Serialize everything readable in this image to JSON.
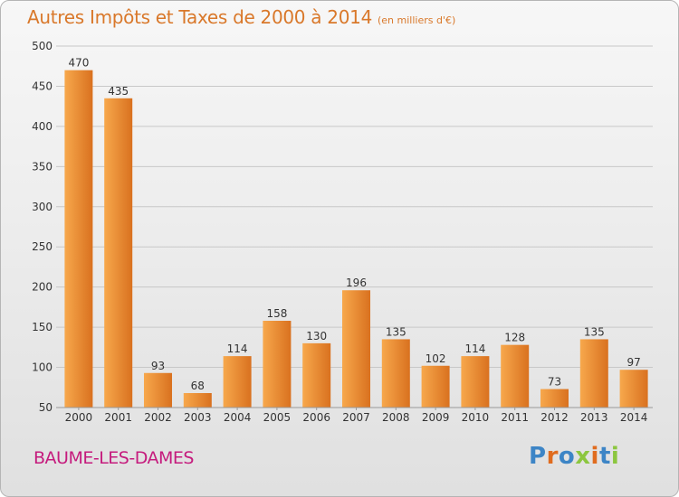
{
  "header": {
    "title": "Autres Impôts et Taxes de 2000 à 2014",
    "unit": "(en milliers d'€)"
  },
  "footer": {
    "city": "BAUME-LES-DAMES",
    "logo_text": "Proxiti"
  },
  "colors": {
    "title": "#d9782a",
    "city": "#c51b7d",
    "bar_light": "#f7a84c",
    "bar_dark": "#d9711f",
    "grid": "#c8c8c8",
    "logo": [
      "#3d85c6",
      "#e06c1f",
      "#3d85c6",
      "#8cc63f",
      "#e06c1f",
      "#3d85c6",
      "#8cc63f"
    ]
  },
  "chart_data": {
    "type": "bar",
    "title": "Autres Impôts et Taxes de 2000 à 2014",
    "subtitle": "(en milliers d'€)",
    "xlabel": "",
    "ylabel": "",
    "ylim": [
      50,
      500
    ],
    "yticks": [
      50,
      100,
      150,
      200,
      250,
      300,
      350,
      400,
      450,
      500
    ],
    "grid": true,
    "categories": [
      "2000",
      "2001",
      "2002",
      "2003",
      "2004",
      "2005",
      "2006",
      "2007",
      "2008",
      "2009",
      "2010",
      "2011",
      "2012",
      "2013",
      "2014"
    ],
    "values": [
      470,
      435,
      93,
      68,
      114,
      158,
      130,
      196,
      135,
      102,
      114,
      128,
      73,
      135,
      97
    ]
  }
}
